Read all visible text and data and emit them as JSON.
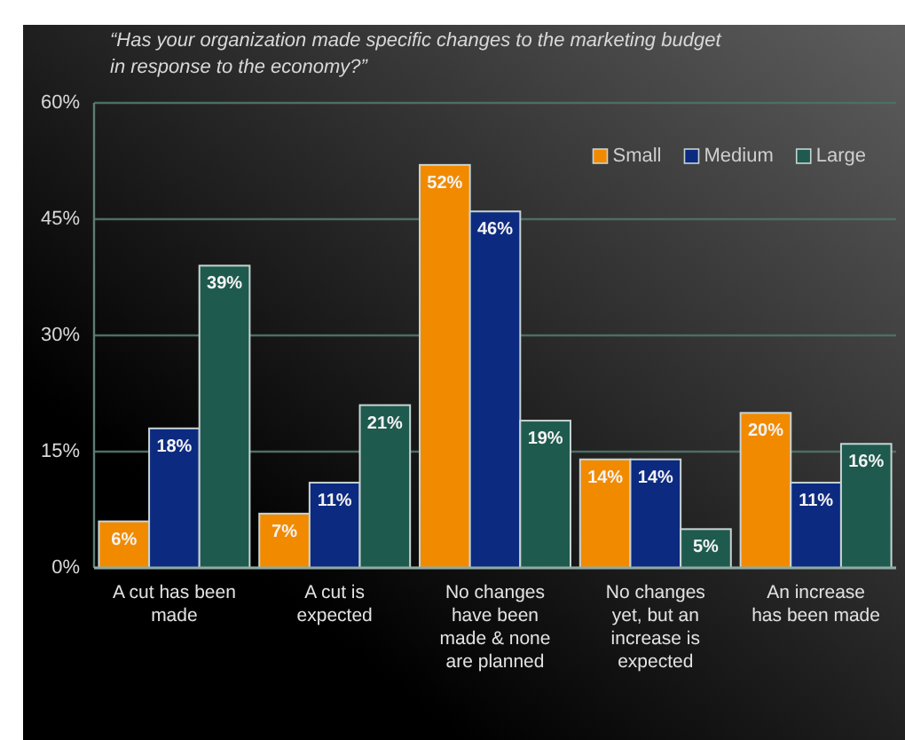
{
  "chart_data": {
    "type": "bar",
    "title": "“Has your organization made specific changes to the marketing budget in response to the economy?”",
    "categories": [
      "A cut has been made",
      "A cut is expected",
      "No changes have been made & none are planned",
      "No changes yet, but an increase is expected",
      "An increase has been made"
    ],
    "series": [
      {
        "name": "Small",
        "color": "#f28a00",
        "values": [
          6,
          7,
          52,
          14,
          20
        ],
        "value_labels": [
          "6%",
          "7%",
          "52%",
          "14%",
          "20%"
        ]
      },
      {
        "name": "Medium",
        "color": "#0c2a80",
        "values": [
          18,
          11,
          46,
          14,
          11
        ],
        "value_labels": [
          "18%",
          "11%",
          "46%",
          "14%",
          "11%"
        ]
      },
      {
        "name": "Large",
        "color": "#1f5a4e",
        "values": [
          39,
          21,
          19,
          5,
          16
        ],
        "value_labels": [
          "39%",
          "21%",
          "19%",
          "5%",
          "16%"
        ]
      }
    ],
    "ylim": [
      0,
      60
    ],
    "yticks": [
      {
        "value": 0,
        "label": "0%"
      },
      {
        "value": 15,
        "label": "15%"
      },
      {
        "value": 30,
        "label": "30%"
      },
      {
        "value": 45,
        "label": "45%"
      },
      {
        "value": 60,
        "label": "60%"
      }
    ],
    "grid": "y",
    "legend": "top right"
  }
}
